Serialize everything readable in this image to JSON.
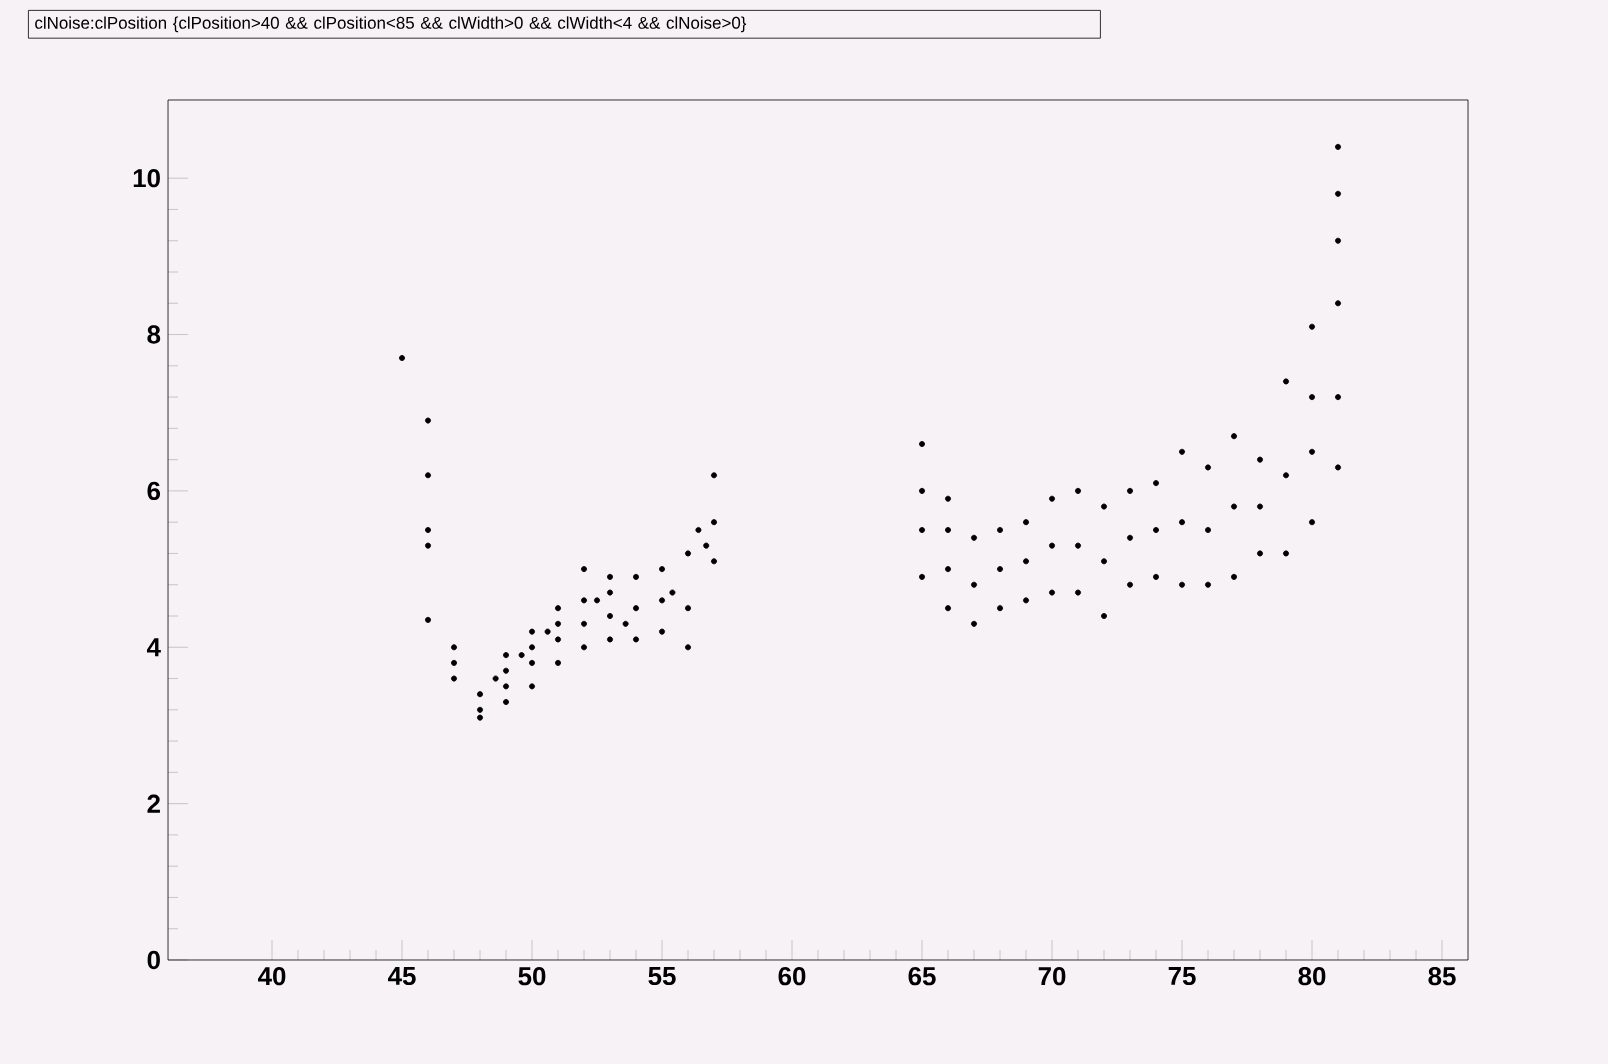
{
  "chart_data": {
    "type": "scatter",
    "title": "clNoise:clPosition {clPosition>40 && clPosition<85 && clWidth>0 && clWidth<4 && clNoise>0}",
    "xlim": [
      36,
      86
    ],
    "xticks": [
      40,
      45,
      50,
      55,
      60,
      65,
      70,
      75,
      80,
      85
    ],
    "ylim": [
      0,
      11
    ],
    "yticks": [
      0,
      2,
      4,
      6,
      8,
      10
    ],
    "series": [
      {
        "color": "#000000",
        "x": [
          45,
          46,
          46,
          46,
          46,
          46,
          47,
          47,
          47,
          48,
          48,
          48,
          49,
          49,
          49,
          49,
          48.6,
          50,
          50,
          50,
          50,
          49.6,
          51,
          51,
          51,
          51,
          50.6,
          52,
          52,
          52,
          52,
          52.5,
          53,
          53,
          53,
          53,
          54,
          54,
          54,
          53.6,
          55,
          55,
          55,
          55.4,
          56,
          56,
          56,
          56.4,
          57,
          57,
          57,
          56.7,
          65,
          65,
          65,
          65,
          66,
          66,
          66,
          66,
          67,
          67,
          67,
          68,
          68,
          68,
          69,
          69,
          69,
          70,
          70,
          70,
          71,
          71,
          71,
          72,
          72,
          72,
          73,
          73,
          73,
          74,
          74,
          74,
          75,
          75,
          75,
          76,
          76,
          76,
          77,
          77,
          77,
          78,
          78,
          78,
          79,
          79,
          79,
          80,
          80,
          80,
          80,
          81,
          81,
          81,
          81,
          81,
          81
        ],
        "values": [
          7.7,
          6.9,
          6.2,
          5.5,
          5.3,
          4.35,
          4.0,
          3.8,
          3.6,
          3.4,
          3.2,
          3.1,
          3.3,
          3.5,
          3.7,
          3.9,
          3.6,
          3.5,
          3.8,
          4.0,
          4.2,
          3.9,
          3.8,
          4.1,
          4.3,
          4.5,
          4.2,
          4.0,
          4.3,
          4.6,
          5.0,
          4.6,
          4.1,
          4.4,
          4.7,
          4.9,
          4.1,
          4.5,
          4.9,
          4.3,
          4.2,
          4.6,
          5.0,
          4.7,
          4.0,
          4.5,
          5.2,
          5.5,
          5.1,
          5.6,
          6.2,
          5.3,
          4.9,
          5.5,
          6.0,
          6.6,
          4.5,
          5.0,
          5.5,
          5.9,
          4.3,
          4.8,
          5.4,
          4.5,
          5.0,
          5.5,
          4.6,
          5.1,
          5.6,
          4.7,
          5.3,
          5.9,
          4.7,
          5.3,
          6.0,
          4.4,
          5.1,
          5.8,
          4.8,
          5.4,
          6.0,
          4.9,
          5.5,
          6.1,
          4.8,
          5.6,
          6.5,
          4.8,
          5.5,
          6.3,
          4.9,
          5.8,
          6.7,
          5.2,
          5.8,
          6.4,
          5.2,
          6.2,
          7.4,
          5.6,
          6.5,
          7.2,
          8.1,
          6.3,
          7.2,
          8.4,
          9.2,
          9.8,
          10.4
        ]
      }
    ]
  }
}
